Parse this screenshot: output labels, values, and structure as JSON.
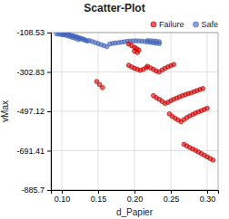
{
  "chart_data": {
    "type": "scatter",
    "title": "Scatter-Plot",
    "xlabel": "d_Papier",
    "ylabel": "vMax",
    "xlim": [
      0.085,
      0.315
    ],
    "ylim": [
      -885.7,
      -108.53
    ],
    "xticks": [
      {
        "value": 0.1,
        "label": "0.10"
      },
      0.15,
      {
        "value": 0.2,
        "label": "0.20"
      },
      0.25,
      {
        "value": 0.3,
        "label": "0.30"
      }
    ],
    "yticks": [
      -108.53,
      -302.83,
      -497.12,
      -691.41,
      -885.7
    ],
    "grid": true,
    "legend": "upper right",
    "series": [
      {
        "name": "Failure",
        "color": "#cc0000",
        "x": [
          0.192,
          0.196,
          0.2,
          0.203,
          0.206,
          0.2,
          0.204,
          0.148,
          0.152,
          0.156,
          0.192,
          0.196,
          0.2,
          0.204,
          0.208,
          0.212,
          0.216,
          0.218,
          0.222,
          0.226,
          0.23,
          0.234,
          0.238,
          0.242,
          0.246,
          0.25,
          0.254,
          0.226,
          0.23,
          0.234,
          0.238,
          0.242,
          0.246,
          0.25,
          0.254,
          0.258,
          0.262,
          0.266,
          0.27,
          0.274,
          0.278,
          0.282,
          0.286,
          0.29,
          0.294,
          0.248,
          0.252,
          0.256,
          0.26,
          0.264,
          0.268,
          0.272,
          0.276,
          0.28,
          0.284,
          0.288,
          0.292,
          0.296,
          0.3,
          0.268,
          0.272,
          0.276,
          0.28,
          0.284,
          0.288,
          0.292,
          0.296,
          0.3,
          0.304,
          0.308
        ],
        "values": [
          -165,
          -173,
          -182,
          -188,
          -195,
          -200,
          -207,
          -350,
          -365,
          -380,
          -270,
          -278,
          -285,
          -290,
          -295,
          -290,
          -282,
          -275,
          -283,
          -290,
          -298,
          -303,
          -293,
          -285,
          -278,
          -272,
          -266,
          -420,
          -430,
          -438,
          -448,
          -458,
          -453,
          -445,
          -438,
          -432,
          -426,
          -420,
          -415,
          -410,
          -406,
          -400,
          -395,
          -390,
          -385,
          -510,
          -522,
          -532,
          -540,
          -548,
          -538,
          -528,
          -520,
          -513,
          -506,
          -500,
          -494,
          -488,
          -482,
          -660,
          -668,
          -676,
          -683,
          -690,
          -698,
          -706,
          -714,
          -722,
          -730,
          -738
        ]
      },
      {
        "name": "Safe",
        "color": "#4466bb",
        "x": [
          0.093,
          0.096,
          0.099,
          0.101,
          0.103,
          0.105,
          0.107,
          0.109,
          0.111,
          0.113,
          0.115,
          0.117,
          0.119,
          0.121,
          0.123,
          0.125,
          0.127,
          0.129,
          0.131,
          0.133,
          0.135,
          0.103,
          0.107,
          0.111,
          0.115,
          0.119,
          0.123,
          0.138,
          0.142,
          0.146,
          0.15,
          0.154,
          0.158,
          0.162,
          0.166,
          0.17,
          0.174,
          0.178,
          0.182,
          0.186,
          0.19,
          0.194,
          0.198,
          0.202,
          0.206,
          0.21,
          0.214,
          0.218,
          0.222,
          0.226,
          0.23,
          0.234,
          0.218,
          0.222,
          0.226,
          0.23,
          0.234
        ],
        "values": [
          -115,
          -116,
          -117,
          -118,
          -116,
          -115,
          -117,
          -119,
          -121,
          -123,
          -125,
          -127,
          -129,
          -131,
          -134,
          -136,
          -139,
          -141,
          -144,
          -147,
          -150,
          -120,
          -124,
          -128,
          -133,
          -138,
          -143,
          -148,
          -153,
          -158,
          -163,
          -168,
          -173,
          -178,
          -165,
          -162,
          -160,
          -158,
          -156,
          -154,
          -152,
          -151,
          -150,
          -149,
          -150,
          -151,
          -153,
          -155,
          -157,
          -159,
          -161,
          -163,
          -148,
          -149,
          -150,
          -152,
          -154
        ]
      }
    ]
  }
}
